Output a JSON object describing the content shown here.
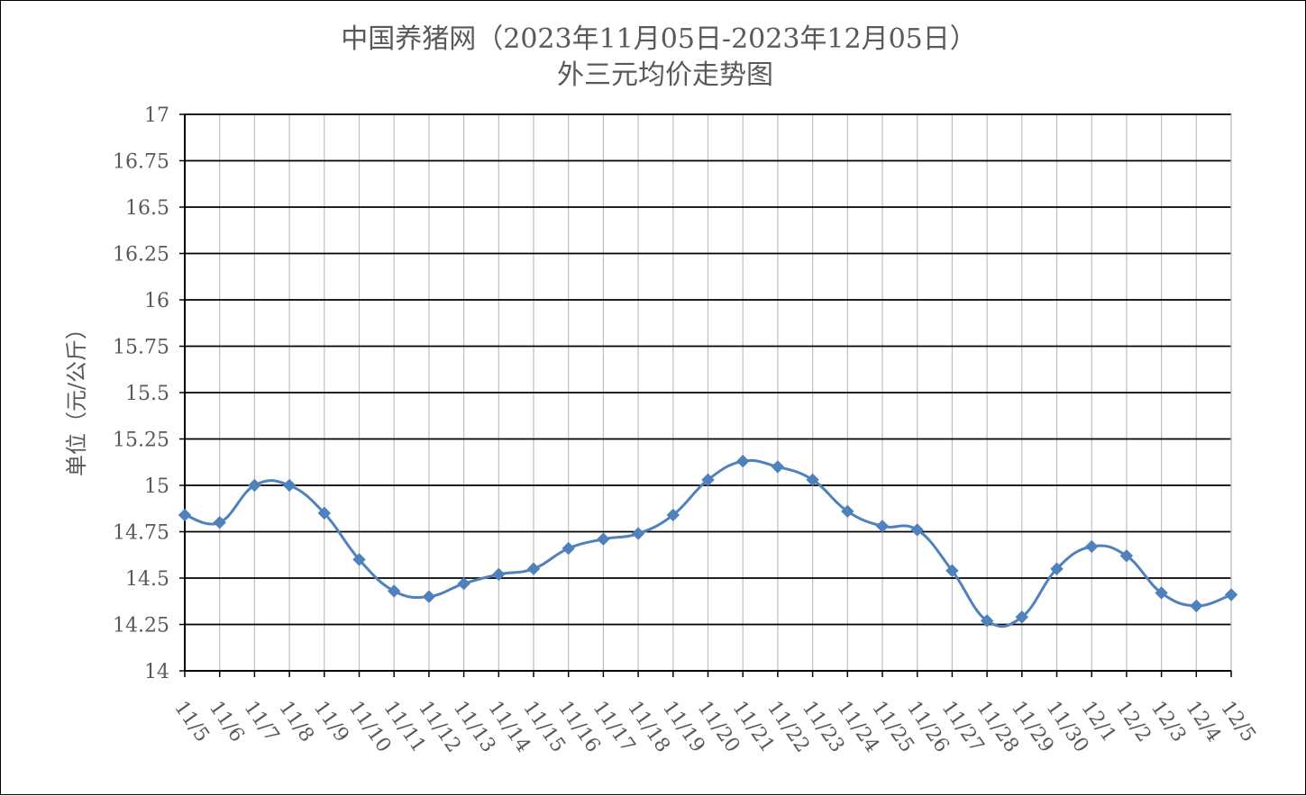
{
  "chart_data": {
    "type": "line",
    "title": "中国养猪网（2023年11月05日-2023年12月05日）",
    "subtitle": "外三元均价走势图",
    "xlabel": "",
    "ylabel": "单位（元/公斤）",
    "ylim": [
      14,
      17
    ],
    "y_ticks": [
      "14",
      "14.25",
      "14.5",
      "14.75",
      "15",
      "15.25",
      "15.5",
      "15.75",
      "16",
      "16.25",
      "16.5",
      "16.75",
      "17"
    ],
    "grid": "on",
    "legend": "none",
    "categories": [
      "11/5",
      "11/6",
      "11/7",
      "11/8",
      "11/9",
      "11/10",
      "11/11",
      "11/12",
      "11/13",
      "11/14",
      "11/15",
      "11/16",
      "11/17",
      "11/18",
      "11/19",
      "11/20",
      "11/21",
      "11/22",
      "11/23",
      "11/24",
      "11/25",
      "11/26",
      "11/27",
      "11/28",
      "11/29",
      "11/30",
      "12/1",
      "12/2",
      "12/3",
      "12/4",
      "12/5"
    ],
    "series": [
      {
        "values": [
          14.84,
          14.8,
          15.0,
          15.0,
          14.85,
          14.6,
          14.43,
          14.4,
          14.47,
          14.52,
          14.55,
          14.66,
          14.71,
          14.74,
          14.84,
          15.03,
          15.13,
          15.1,
          15.03,
          14.86,
          14.78,
          14.76,
          14.54,
          14.27,
          14.29,
          14.55,
          14.67,
          14.62,
          14.42,
          14.35,
          14.41
        ]
      }
    ],
    "colors": {
      "line": "#4f81bd",
      "marker": "#4f81bd",
      "grid": "#000000",
      "text": "#595959"
    }
  }
}
